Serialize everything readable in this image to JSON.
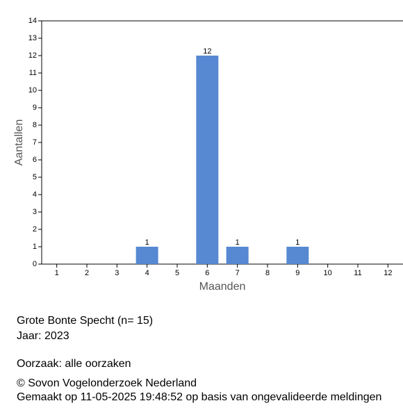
{
  "chart_data": {
    "type": "bar",
    "categories": [
      "1",
      "2",
      "3",
      "4",
      "5",
      "6",
      "7",
      "8",
      "9",
      "10",
      "11",
      "12"
    ],
    "values": [
      0,
      0,
      0,
      1,
      0,
      12,
      1,
      0,
      1,
      0,
      0,
      0
    ],
    "color": "#5789d2",
    "x_label": "Maanden",
    "y_label": "Aantallen",
    "ylim": [
      0,
      14
    ],
    "yticks": [
      0,
      1,
      2,
      3,
      4,
      5,
      6,
      7,
      8,
      9,
      10,
      11,
      12,
      13,
      14
    ],
    "grid": false
  },
  "caption": {
    "species": "Grote Bonte Specht  (n= 15)",
    "year": "Jaar: 2023",
    "cause": "Oorzaak: alle oorzaken",
    "copyright": "© Sovon Vogelonderzoek Nederland",
    "made": "Gemaakt op 11-05-2025 19:48:52 op basis van ongevalideerde meldingen"
  }
}
